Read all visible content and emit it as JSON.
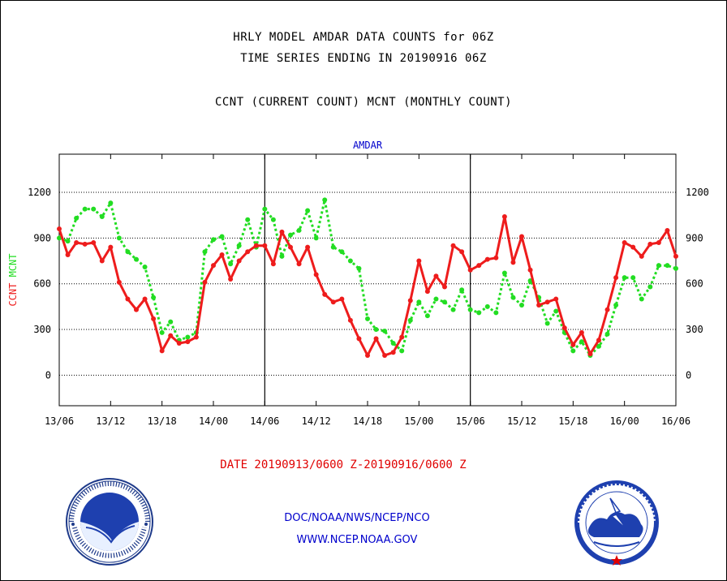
{
  "title_line1": "HRLY MODEL AMDAR DATA COUNTS for 06Z",
  "title_line2": "TIME SERIES ENDING IN 20190916 06Z",
  "title_line3": "CCNT (CURRENT COUNT) MCNT (MONTHLY COUNT)",
  "date_range": "DATE 20190913/0600 Z-20190916/0600 Z",
  "footer_org": "DOC/NOAA/NWS/NCEP/NCO",
  "footer_url": "WWW.NCEP.NOAA.GOV",
  "logos": {
    "left": "noaa-logo",
    "right": "nws-logo"
  },
  "colors": {
    "ccnt": "#ee1c1c",
    "mcnt": "#22dd22",
    "plot_label": "#0000cc"
  },
  "chart_data": {
    "type": "line",
    "title": "AMDAR",
    "ylabel": "CCNT  MCNT",
    "ylim": [
      -200,
      1450
    ],
    "yticks": [
      0,
      300,
      600,
      900,
      1200
    ],
    "xlim": [
      0,
      72
    ],
    "xtick_labels": [
      "13/06",
      "13/12",
      "13/18",
      "14/00",
      "14/06",
      "14/12",
      "14/18",
      "15/00",
      "15/06",
      "15/12",
      "15/18",
      "16/00",
      "16/06"
    ],
    "xtick_hours": [
      0,
      6,
      12,
      18,
      24,
      30,
      36,
      42,
      48,
      54,
      60,
      66,
      72
    ],
    "day_dividers": [
      24,
      48
    ],
    "grid": "horizontal-dotted",
    "series": [
      {
        "name": "CCNT",
        "style": "solid",
        "values": [
          960,
          790,
          870,
          860,
          870,
          750,
          840,
          610,
          500,
          430,
          500,
          370,
          160,
          260,
          210,
          220,
          250,
          610,
          720,
          790,
          630,
          750,
          810,
          850,
          850,
          730,
          940,
          840,
          730,
          840,
          660,
          530,
          480,
          500,
          360,
          240,
          130,
          240,
          130,
          150,
          250,
          490,
          750,
          550,
          650,
          580,
          850,
          810,
          690,
          720,
          760,
          770,
          1040,
          740,
          910,
          690,
          460,
          480,
          500,
          310,
          200,
          280,
          140,
          230,
          430,
          640,
          870,
          840,
          780,
          860,
          870,
          950,
          780
        ]
      },
      {
        "name": "MCNT",
        "style": "dotted",
        "values": [
          900,
          880,
          1030,
          1090,
          1090,
          1040,
          1130,
          900,
          810,
          760,
          710,
          510,
          280,
          350,
          230,
          250,
          280,
          810,
          890,
          910,
          730,
          850,
          1020,
          840,
          1090,
          1020,
          780,
          920,
          950,
          1080,
          900,
          1150,
          840,
          810,
          750,
          700,
          370,
          300,
          290,
          210,
          160,
          360,
          480,
          390,
          500,
          480,
          430,
          560,
          430,
          410,
          450,
          410,
          670,
          510,
          460,
          620,
          510,
          340,
          420,
          280,
          160,
          220,
          130,
          190,
          270,
          460,
          640,
          640,
          500,
          580,
          720,
          720,
          700
        ]
      }
    ]
  }
}
